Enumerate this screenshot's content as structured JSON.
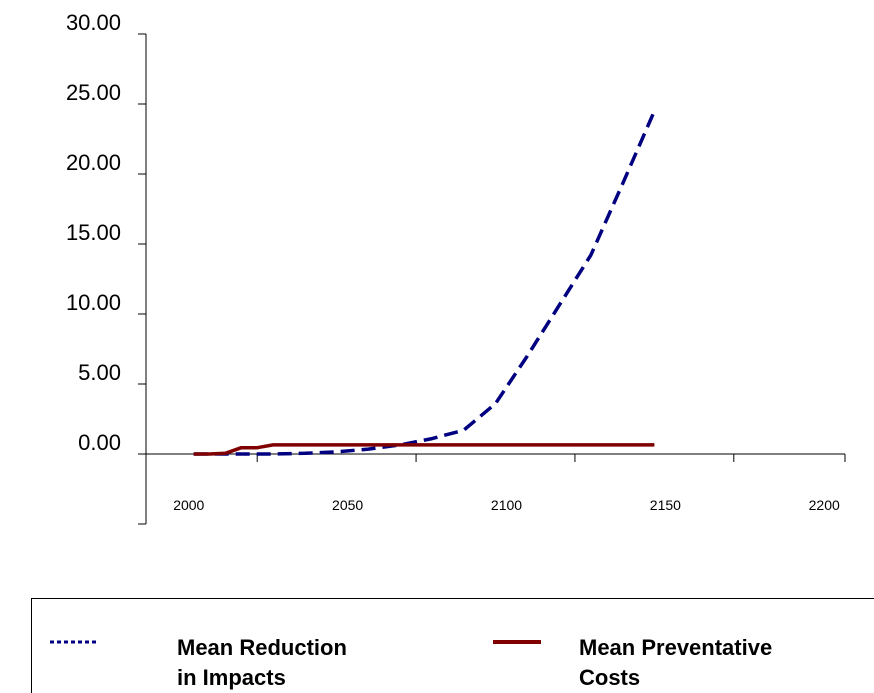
{
  "chart_data": {
    "type": "line",
    "title": "",
    "xlabel": "",
    "ylabel": "",
    "ylim": [
      0,
      30
    ],
    "xlim": [
      1990,
      2210
    ],
    "yticks": [
      "30.00",
      "25.00",
      "20.00",
      "15.00",
      "10.00",
      "5.00",
      "0.00"
    ],
    "xticks": [
      "2000",
      "2050",
      "2100",
      "2150",
      "2200"
    ],
    "grid": false,
    "legend_position": "bottom",
    "series": [
      {
        "name": "Mean Reduction in Impacts",
        "color": "#000080",
        "style": "dashed",
        "x": [
          2005,
          2010,
          2015,
          2020,
          2025,
          2030,
          2040,
          2050,
          2060,
          2070,
          2080,
          2090,
          2100,
          2110,
          2120,
          2130,
          2140,
          2150
        ],
        "y": [
          0.0,
          0.0,
          0.0,
          0.0,
          0.0,
          0.0,
          0.05,
          0.15,
          0.35,
          0.65,
          1.1,
          1.7,
          3.6,
          7.0,
          10.6,
          14.2,
          19.3,
          24.5
        ]
      },
      {
        "name": "Mean Preventative Costs",
        "color": "#800000",
        "style": "solid",
        "x": [
          2005,
          2010,
          2015,
          2020,
          2025,
          2030,
          2040,
          2050,
          2060,
          2070,
          2080,
          2090,
          2100,
          2110,
          2120,
          2130,
          2140,
          2150
        ],
        "y": [
          0.0,
          0.0,
          0.05,
          0.45,
          0.45,
          0.65,
          0.65,
          0.65,
          0.65,
          0.65,
          0.65,
          0.65,
          0.65,
          0.65,
          0.65,
          0.65,
          0.65,
          0.65
        ]
      }
    ]
  },
  "legend": {
    "items": [
      {
        "label_line1": "Mean Reduction",
        "label_line2": "in Impacts"
      },
      {
        "label_line1": "Mean Preventative",
        "label_line2": "Costs"
      }
    ]
  }
}
